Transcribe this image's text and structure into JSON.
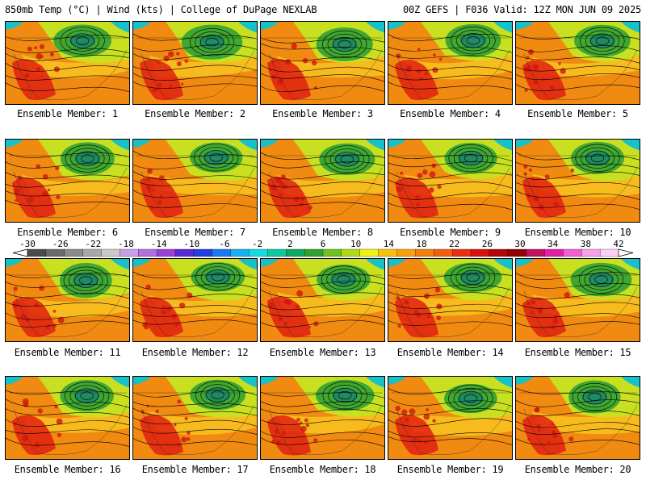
{
  "header": {
    "left_title": "850mb Temp (°C) | Wind (kts) | College of DuPage NEXLAB",
    "right_title": "00Z GEFS | F036 Valid: 12Z MON JUN 09 2025"
  },
  "panels": [
    {
      "label": "Ensemble Member: 1"
    },
    {
      "label": "Ensemble Member: 2"
    },
    {
      "label": "Ensemble Member: 3"
    },
    {
      "label": "Ensemble Member: 4"
    },
    {
      "label": "Ensemble Member: 5"
    },
    {
      "label": "Ensemble Member: 6"
    },
    {
      "label": "Ensemble Member: 7"
    },
    {
      "label": "Ensemble Member: 8"
    },
    {
      "label": "Ensemble Member: 9"
    },
    {
      "label": "Ensemble Member: 10"
    },
    {
      "label": "Ensemble Member: 11"
    },
    {
      "label": "Ensemble Member: 12"
    },
    {
      "label": "Ensemble Member: 13"
    },
    {
      "label": "Ensemble Member: 14"
    },
    {
      "label": "Ensemble Member: 15"
    },
    {
      "label": "Ensemble Member: 16"
    },
    {
      "label": "Ensemble Member: 17"
    },
    {
      "label": "Ensemble Member: 18"
    },
    {
      "label": "Ensemble Member: 19"
    },
    {
      "label": "Ensemble Member: 20"
    }
  ],
  "colorbar": {
    "labels": [
      "-30",
      "-26",
      "-22",
      "-18",
      "-14",
      "-10",
      "-6",
      "-2",
      "2",
      "6",
      "10",
      "14",
      "18",
      "22",
      "26",
      "30",
      "34",
      "38",
      "42"
    ],
    "colors": [
      "#4a4a4a",
      "#6a6a6a",
      "#8a8a8a",
      "#a8a8a8",
      "#c9c9c9",
      "#c8a0e8",
      "#b070e0",
      "#9a40d8",
      "#5a2ad0",
      "#2040e0",
      "#1a78f0",
      "#18b0f0",
      "#18d8e0",
      "#10c8a0",
      "#10a860",
      "#30a030",
      "#70c020",
      "#b0d818",
      "#f0f018",
      "#f8c010",
      "#f8a010",
      "#f08010",
      "#f06010",
      "#e83010",
      "#d81010",
      "#b00808",
      "#900000",
      "#c01060",
      "#e020a0",
      "#f060d0",
      "#f8a0e8",
      "#fcd0f4"
    ]
  },
  "map_colors": {
    "hot": "#e02010",
    "warm": "#f08a10",
    "mild": "#f8c020",
    "cool": "#c8e020",
    "cold": "#40a830",
    "colder": "#208a60",
    "ocean_cold": "#18c0c8"
  }
}
